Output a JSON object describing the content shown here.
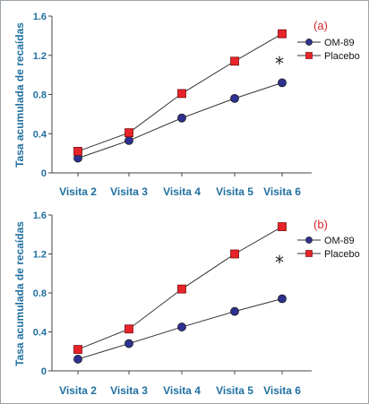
{
  "colors": {
    "series_line": "#333333",
    "om89_marker": "#2e3192",
    "placebo_marker": "#e8232a",
    "axis_text": "#1f6fa0",
    "panel_tag": "#d8262b"
  },
  "chart_data": [
    {
      "type": "line",
      "panel_label": "(a)",
      "annotation": "*",
      "ylabel": "Tasa acumulada de recaídas",
      "xlabel": "",
      "categories": [
        "Visita 2",
        "Visita 3",
        "Visita 4",
        "Visita 5",
        "Visita 6"
      ],
      "ylim": [
        0,
        1.6
      ],
      "yticks": [
        "0",
        "0.4",
        "0.8",
        "1.2",
        "1.6"
      ],
      "grid": false,
      "legend_position": "right",
      "series": [
        {
          "name": "OM-89",
          "marker": "circle",
          "values": [
            0.15,
            0.33,
            0.56,
            0.76,
            0.92
          ]
        },
        {
          "name": "Placebo",
          "marker": "square",
          "values": [
            0.22,
            0.41,
            0.81,
            1.14,
            1.42
          ]
        }
      ]
    },
    {
      "type": "line",
      "panel_label": "(b)",
      "annotation": "*",
      "ylabel": "Tasa acumulada de recaídas",
      "xlabel": "",
      "categories": [
        "Visita 2",
        "Visita 3",
        "Visita 4",
        "Visita 5",
        "Visita 6"
      ],
      "ylim": [
        0,
        1.6
      ],
      "yticks": [
        "0",
        "0.4",
        "0.8",
        "1.2",
        "1.6"
      ],
      "grid": false,
      "legend_position": "right",
      "series": [
        {
          "name": "OM-89",
          "marker": "circle",
          "values": [
            0.12,
            0.28,
            0.45,
            0.61,
            0.74
          ]
        },
        {
          "name": "Placebo",
          "marker": "square",
          "values": [
            0.22,
            0.43,
            0.84,
            1.2,
            1.48
          ]
        }
      ]
    }
  ]
}
